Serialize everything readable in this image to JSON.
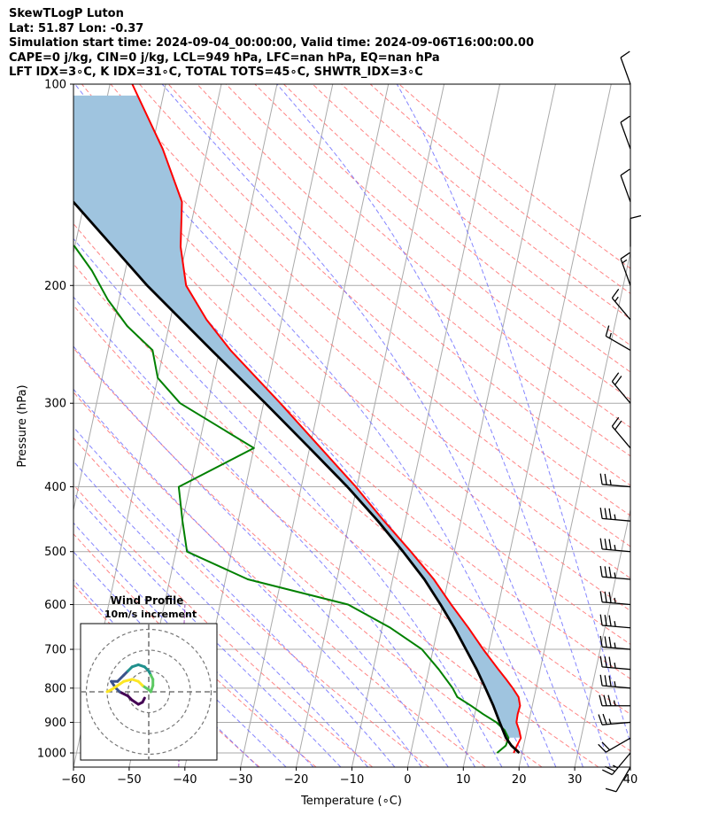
{
  "header": {
    "line1": "SkewTLogP Luton",
    "line2": "Lat: 51.87   Lon: -0.37",
    "line3": "Simulation start time: 2024-09-04_00:00:00, Valid time: 2024-09-06T16:00:00.00",
    "line4": "CAPE=0 j/kg, CIN=0 j/kg, LCL=949 hPa, LFC=nan hPa, EQ=nan hPa",
    "line5": "LFT IDX=3∘C, K IDX=31∘C, TOTAL TOTS=45∘C, SHWTR_IDX=3∘C"
  },
  "chart_data": {
    "type": "line",
    "subtype": "skew-t log-p",
    "xlabel": "Temperature (∘C)",
    "ylabel": "Pressure (hPa)",
    "xlim": [
      -60,
      40
    ],
    "ylim": [
      1050,
      100
    ],
    "y_scale": "log",
    "xticks": [
      -60,
      -50,
      -40,
      -30,
      -20,
      -10,
      0,
      10,
      20,
      30,
      40
    ],
    "yticks": [
      100,
      200,
      300,
      400,
      500,
      600,
      700,
      800,
      900,
      1000
    ],
    "grid": true,
    "colors": {
      "temperature": "#ff0000",
      "dewpoint": "#008000",
      "parcel": "#000000",
      "cape_fill": "#9fc4df",
      "dry_adiabats": "#ff6666",
      "moist_adiabats": "#6666ff",
      "mixing_ratio": "#a050c0",
      "isotherms": "#aaaaaa"
    },
    "series": [
      {
        "key": "temperature",
        "p": [
          1000,
          975,
          950,
          925,
          900,
          875,
          850,
          825,
          800,
          775,
          750,
          700,
          650,
          600,
          550,
          500,
          450,
          400,
          350,
          300,
          250,
          225,
          200,
          175,
          150,
          125,
          100
        ],
        "t": [
          18.5,
          18.8,
          19.2,
          18.6,
          17.8,
          17.7,
          17.8,
          17.2,
          15.8,
          14.2,
          12.5,
          9.0,
          5.5,
          1.5,
          -2.6,
          -7.8,
          -13.8,
          -20.2,
          -28.0,
          -37.0,
          -48.0,
          -53.5,
          -58.5,
          -61.0,
          -62.5,
          -68.0,
          -76.0
        ]
      },
      {
        "key": "dewpoint",
        "p": [
          1000,
          975,
          950,
          925,
          900,
          875,
          850,
          825,
          800,
          750,
          700,
          650,
          600,
          550,
          500,
          450,
          400,
          350,
          300,
          275,
          250,
          230,
          210,
          190,
          175,
          160,
          150,
          125,
          100
        ],
        "t": [
          15.5,
          16.8,
          17.0,
          16.0,
          14.2,
          11.5,
          9.0,
          6.2,
          5.0,
          1.8,
          -2.0,
          -8.5,
          -17.0,
          -36.0,
          -48.0,
          -50.0,
          -52.0,
          -40.0,
          -55.0,
          -60.0,
          -62.0,
          -67.5,
          -72.0,
          -76.0,
          -80.0,
          -87.0,
          -90.0,
          -87.0,
          -88.0
        ]
      },
      {
        "key": "parcel",
        "p": [
          1000,
          975,
          949,
          900,
          850,
          800,
          750,
          700,
          650,
          600,
          550,
          500,
          450,
          400,
          350,
          300,
          250,
          200,
          150,
          100
        ],
        "t": [
          19.5,
          17.8,
          16.5,
          14.8,
          13.0,
          10.9,
          8.6,
          5.9,
          3.0,
          -0.4,
          -4.3,
          -9.2,
          -14.9,
          -21.7,
          -30.0,
          -39.7,
          -51.4,
          -65.5,
          -82.0,
          -104.0
        ]
      }
    ],
    "wind_barbs": {
      "p": [
        1050,
        1000,
        950,
        900,
        850,
        800,
        750,
        700,
        650,
        600,
        550,
        500,
        450,
        400,
        350,
        300,
        250,
        225,
        200,
        175,
        150,
        125,
        100
      ],
      "speed_kt": [
        10,
        25,
        20,
        25,
        35,
        35,
        35,
        35,
        35,
        35,
        35,
        35,
        35,
        25,
        20,
        20,
        15,
        15,
        15,
        10,
        10,
        10,
        10
      ],
      "direction_deg": [
        210,
        220,
        240,
        265,
        270,
        275,
        275,
        275,
        275,
        275,
        275,
        275,
        275,
        275,
        320,
        320,
        300,
        320,
        340,
        0,
        340,
        340,
        340
      ]
    },
    "inset": {
      "title": "Wind Profile",
      "subtitle": "10m/s increment",
      "rings_ms": [
        10,
        20,
        30
      ],
      "u_ms": [
        -2,
        -3,
        -5,
        -8,
        -10,
        -14,
        -16,
        -18,
        -15,
        -12,
        -10,
        -8,
        -5,
        -2,
        0,
        1,
        2,
        2,
        1,
        0,
        -3,
        -5,
        -8,
        -12,
        -15,
        -18,
        -20
      ],
      "v_ms": [
        -3,
        -5,
        -6,
        -4,
        -2,
        0,
        2,
        5,
        5,
        8,
        10,
        12,
        13,
        12,
        10,
        8,
        6,
        3,
        0,
        1,
        3,
        5,
        6,
        5,
        3,
        1,
        0
      ]
    }
  }
}
